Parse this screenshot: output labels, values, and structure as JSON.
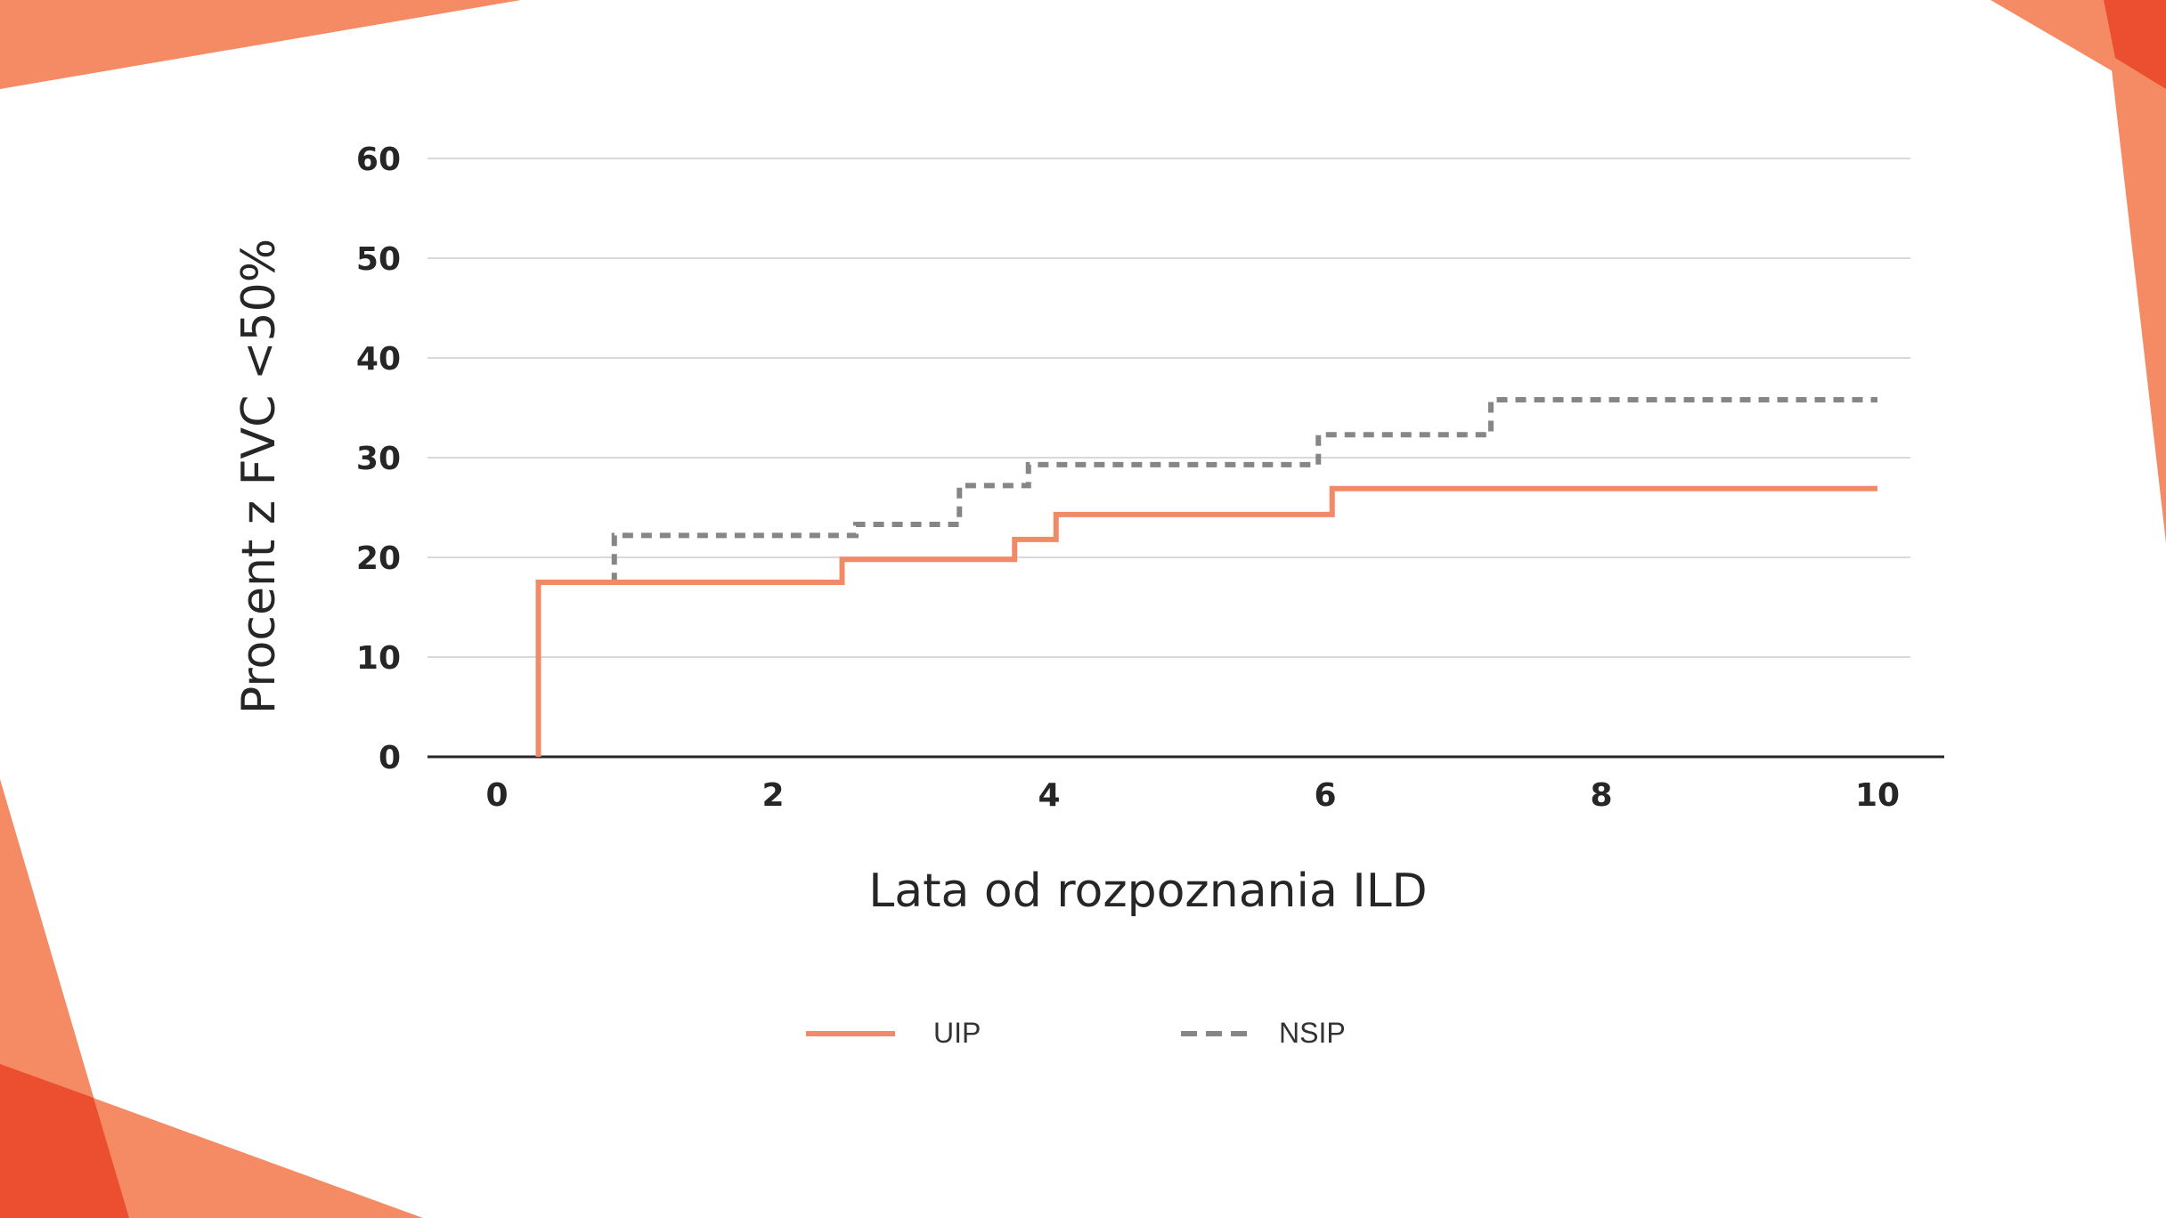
{
  "colors": {
    "accent_light": "#F48B65",
    "accent_dark": "#EC4F2F",
    "uip": "#F28A67",
    "nsip": "#868686",
    "grid": "#D9D9D9",
    "axis": "#262626",
    "text": "#262626"
  },
  "chart_data": {
    "type": "line",
    "step": true,
    "xlabel": "Lata od rozpoznania ILD",
    "ylabel": "Procent z FVC <50%",
    "xlim": [
      0,
      10
    ],
    "ylim": [
      0,
      60
    ],
    "xticks": [
      "0",
      "2",
      "4",
      "6",
      "8",
      "10"
    ],
    "yticks": [
      "0",
      "10",
      "20",
      "30",
      "40",
      "50",
      "60"
    ],
    "grid": true,
    "legend_position": "bottom",
    "series": [
      {
        "name": "UIP",
        "style": "solid",
        "x": [
          0.3,
          0.3,
          2.5,
          3.75,
          4.05,
          6.05,
          10.0
        ],
        "y": [
          0,
          17.5,
          19.8,
          21.8,
          24.3,
          26.9,
          26.9
        ]
      },
      {
        "name": "NSIP",
        "style": "dashed",
        "x": [
          0.3,
          0.85,
          2.6,
          3.35,
          3.85,
          5.95,
          7.2,
          10.0
        ],
        "y": [
          17.5,
          22.2,
          23.3,
          27.2,
          29.3,
          32.3,
          35.8,
          35.8
        ]
      }
    ]
  }
}
